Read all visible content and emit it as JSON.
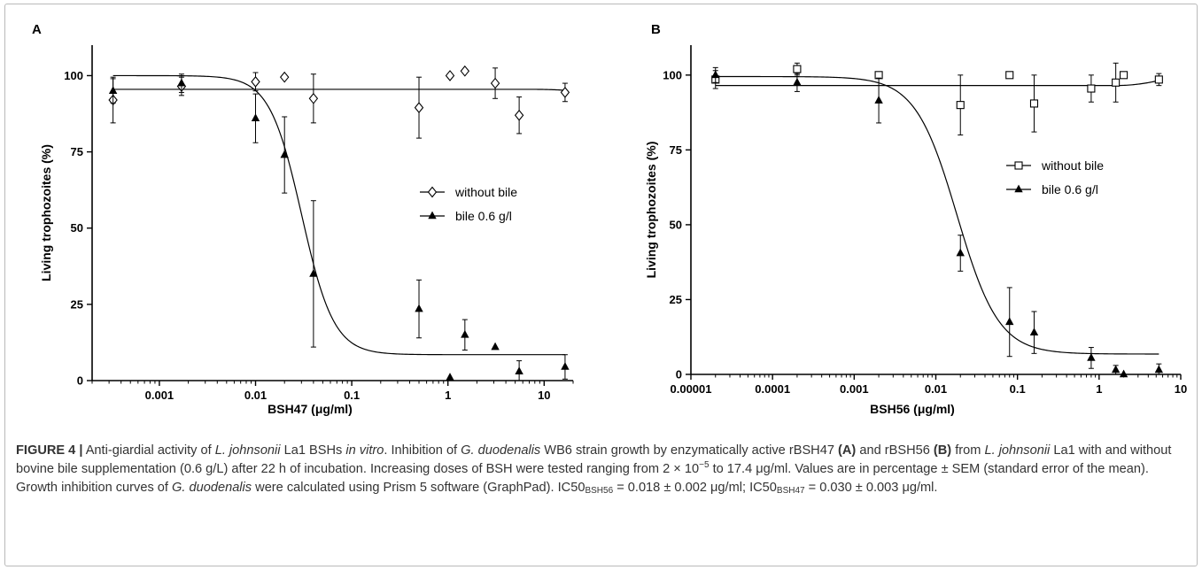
{
  "chart_data": [
    {
      "type": "scatter",
      "panel_label": "A",
      "xlabel": "BSH47 (μg/ml)",
      "ylabel": "Living trophozoites (%)",
      "x_scale": "log",
      "xlim": [
        0.0002,
        20
      ],
      "ylim": [
        0,
        110
      ],
      "x_ticks": [
        0.001,
        0.01,
        0.1,
        1,
        10
      ],
      "x_tick_labels": [
        "0.001",
        "0.01",
        "0.1",
        "1",
        "10"
      ],
      "y_ticks": [
        0,
        25,
        50,
        75,
        100
      ],
      "y_tick_labels": [
        "0",
        "25",
        "50",
        "75",
        "100"
      ],
      "legend_position": "center-right",
      "series": [
        {
          "name": "without bile",
          "marker": "diamond-open",
          "points": [
            {
              "x": 0.00033,
              "y": 92,
              "err": 7.5
            },
            {
              "x": 0.0017,
              "y": 96.5,
              "err": 3
            },
            {
              "x": 0.01,
              "y": 98,
              "err": 3
            },
            {
              "x": 0.02,
              "y": 99.5,
              "err": 0
            },
            {
              "x": 0.04,
              "y": 92.5,
              "err": 8
            },
            {
              "x": 0.5,
              "y": 89.5,
              "err": 10
            },
            {
              "x": 1.05,
              "y": 100,
              "err": 0
            },
            {
              "x": 1.5,
              "y": 101.5,
              "err": 0
            },
            {
              "x": 3.1,
              "y": 97.5,
              "err": 5
            },
            {
              "x": 5.5,
              "y": 87,
              "err": 6
            },
            {
              "x": 16.5,
              "y": 94.5,
              "err": 3
            }
          ],
          "fit": {
            "top": 95.5,
            "bottom": 95.5,
            "log_ic50": -1.52,
            "hill": 1
          }
        },
        {
          "name": "bile 0.6 g/l",
          "marker": "triangle-filled",
          "points": [
            {
              "x": 0.00033,
              "y": 95,
              "err": 4
            },
            {
              "x": 0.0017,
              "y": 97.5,
              "err": 3
            },
            {
              "x": 0.01,
              "y": 86,
              "err": 8
            },
            {
              "x": 0.02,
              "y": 74,
              "err": 12.5
            },
            {
              "x": 0.04,
              "y": 35,
              "err": 24
            },
            {
              "x": 0.5,
              "y": 23.5,
              "err": 9.5
            },
            {
              "x": 1.05,
              "y": 1,
              "err": 0
            },
            {
              "x": 1.5,
              "y": 15,
              "err": 5
            },
            {
              "x": 3.1,
              "y": 11,
              "err": 0
            },
            {
              "x": 5.5,
              "y": 3,
              "err": 3.5
            },
            {
              "x": 16.5,
              "y": 4.5,
              "err": 4
            }
          ],
          "fit": {
            "top": 100,
            "bottom": 8.5,
            "log_ic50": -1.52,
            "hill": 2.6
          }
        }
      ]
    },
    {
      "type": "scatter",
      "panel_label": "B",
      "xlabel": "BSH56 (μg/ml)",
      "ylabel": "Living trophozoites (%)",
      "x_scale": "log",
      "xlim": [
        1e-05,
        10
      ],
      "ylim": [
        0,
        110
      ],
      "x_ticks": [
        1e-05,
        0.0001,
        0.001,
        0.01,
        0.1,
        1,
        10
      ],
      "x_tick_labels": [
        "0.00001",
        "0.0001",
        "0.001",
        "0.01",
        "0.1",
        "1",
        "10"
      ],
      "y_ticks": [
        0,
        25,
        50,
        75,
        100
      ],
      "y_tick_labels": [
        "0",
        "25",
        "50",
        "75",
        "100"
      ],
      "legend_position": "upper-right",
      "series": [
        {
          "name": "without bile",
          "marker": "square-open",
          "points": [
            {
              "x": 2e-05,
              "y": 98.5,
              "err": 3
            },
            {
              "x": 0.0002,
              "y": 102,
              "err": 2
            },
            {
              "x": 0.002,
              "y": 100,
              "err": 0
            },
            {
              "x": 0.02,
              "y": 90,
              "err": 10
            },
            {
              "x": 0.08,
              "y": 100,
              "err": 0
            },
            {
              "x": 0.16,
              "y": 90.5,
              "err": 9.5
            },
            {
              "x": 0.8,
              "y": 95.5,
              "err": 4.5
            },
            {
              "x": 1.6,
              "y": 97.5,
              "err": 6.5
            },
            {
              "x": 2.0,
              "y": 100,
              "err": 0
            },
            {
              "x": 5.4,
              "y": 98.5,
              "err": 2
            }
          ],
          "fit": {
            "top": 96.5,
            "bottom": 96.5,
            "log_ic50": -1.74,
            "hill": 1,
            "upturn": true
          }
        },
        {
          "name": "bile 0.6 g/l",
          "marker": "triangle-filled",
          "points": [
            {
              "x": 2e-05,
              "y": 100,
              "err": 2.5
            },
            {
              "x": 0.0002,
              "y": 97.5,
              "err": 3
            },
            {
              "x": 0.002,
              "y": 91.5,
              "err": 7.5
            },
            {
              "x": 0.02,
              "y": 40.5,
              "err": 6
            },
            {
              "x": 0.08,
              "y": 17.5,
              "err": 11.5
            },
            {
              "x": 0.16,
              "y": 14,
              "err": 7
            },
            {
              "x": 0.8,
              "y": 5.5,
              "err": 3.5
            },
            {
              "x": 1.6,
              "y": 1.5,
              "err": 1.5
            },
            {
              "x": 2.0,
              "y": 0,
              "err": 0
            },
            {
              "x": 5.4,
              "y": 1.5,
              "err": 2
            }
          ],
          "fit": {
            "top": 99.5,
            "bottom": 6.8,
            "log_ic50": -1.74,
            "hill": 1.7
          }
        }
      ]
    }
  ],
  "caption": {
    "figure_label": "FIGURE 4 |",
    "segments": [
      {
        "t": " Anti-giardial activity of "
      },
      {
        "t": "L. johnsonii",
        "i": true
      },
      {
        "t": " La1 BSHs "
      },
      {
        "t": "in vitro",
        "i": true
      },
      {
        "t": ". Inhibition of "
      },
      {
        "t": "G. duodenalis",
        "i": true
      },
      {
        "t": " WB6 strain growth by enzymatically active rBSH47 "
      },
      {
        "t": "(A)",
        "b": true
      },
      {
        "t": " and rBSH56 "
      },
      {
        "t": "(B)",
        "b": true
      },
      {
        "t": " from "
      },
      {
        "t": "L. johnsonii",
        "i": true
      },
      {
        "t": " La1 with and without bovine bile supplementation (0.6 g/L) after 22 h of incubation. Increasing doses of BSH were tested ranging from 2 × 10"
      },
      {
        "t": "−5",
        "sup": true
      },
      {
        "t": " to 17.4 μg/ml. Values are in percentage ± SEM (standard error of the mean). Growth inhibition curves of "
      },
      {
        "t": "G. duodenalis",
        "i": true
      },
      {
        "t": " were calculated using Prism 5 software (GraphPad). IC50"
      },
      {
        "t": "BSH56",
        "sub": true
      },
      {
        "t": " = 0.018 ± 0.002 μg/ml; IC50"
      },
      {
        "t": "BSH47",
        "sub": true
      },
      {
        "t": " = 0.030 ± 0.003 μg/ml."
      }
    ]
  }
}
